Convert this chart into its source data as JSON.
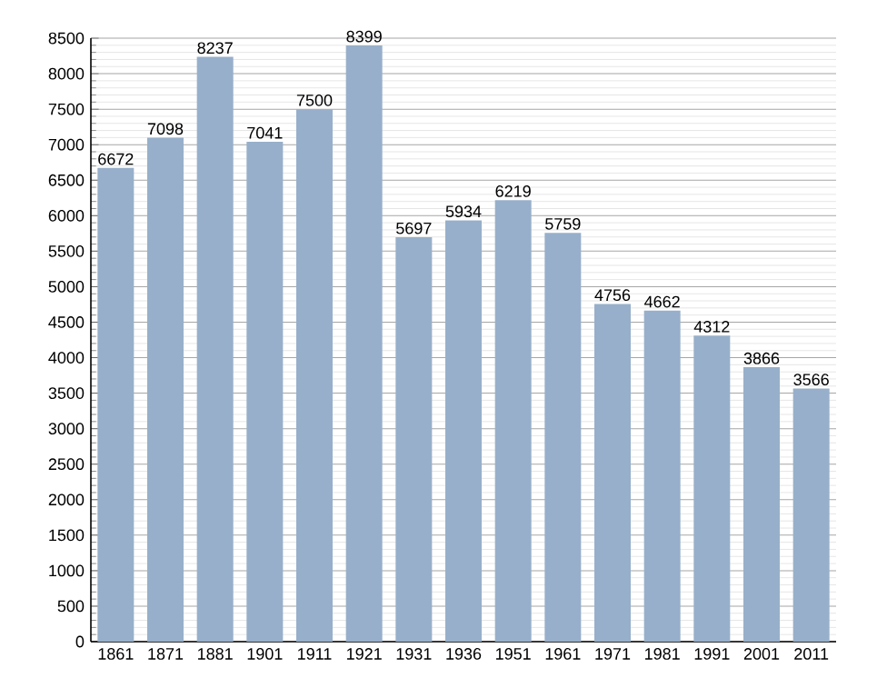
{
  "chart_data": {
    "type": "bar",
    "categories": [
      "1861",
      "1871",
      "1881",
      "1901",
      "1911",
      "1921",
      "1931",
      "1936",
      "1951",
      "1961",
      "1971",
      "1981",
      "1991",
      "2001",
      "2011"
    ],
    "values": [
      6672,
      7098,
      8237,
      7041,
      7500,
      8399,
      5697,
      5934,
      6219,
      5759,
      4756,
      4662,
      4312,
      3866,
      3566
    ],
    "color": "#97afca",
    "data_labels": true,
    "grid": "y",
    "ylim": [
      0,
      8500
    ],
    "yticks": [
      0,
      500,
      1000,
      1500,
      2000,
      2500,
      3000,
      3500,
      4000,
      4500,
      5000,
      5500,
      6000,
      6500,
      7000,
      7500,
      8000,
      8500
    ]
  }
}
